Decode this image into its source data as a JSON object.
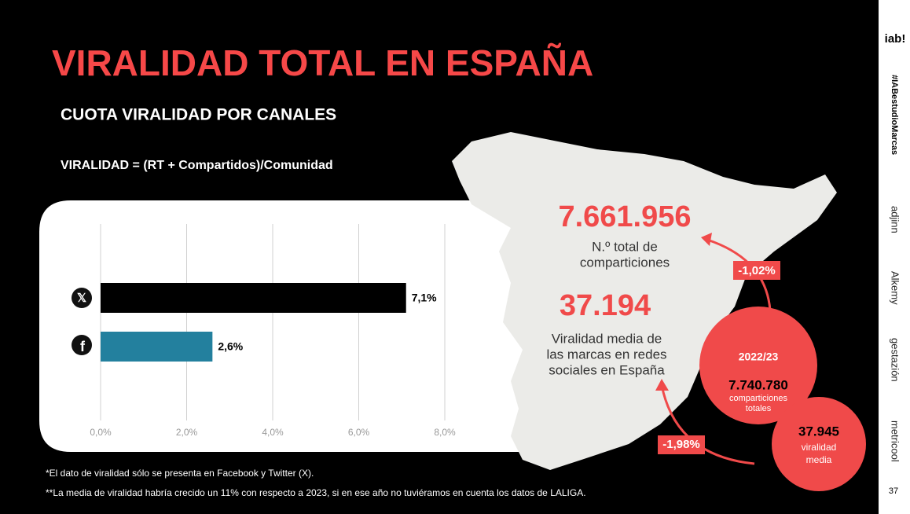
{
  "title": "VIRALIDAD TOTAL EN ESPAÑA",
  "subtitle": "CUOTA VIRALIDAD POR CANALES",
  "formula": "VIRALIDAD = (RT + Compartidos)/Comunidad",
  "chart_data": {
    "type": "bar",
    "orientation": "horizontal",
    "categories": [
      null,
      null
    ],
    "values": [
      7.1,
      2.6
    ],
    "value_labels": [
      "7,1%",
      "2,6%"
    ],
    "colors": [
      "#000000",
      "#23809e"
    ],
    "xlim": [
      0,
      8
    ],
    "xticks": [
      {
        "value": 0,
        "label": "0,0%"
      },
      {
        "value": 2,
        "label": "2,0%"
      },
      {
        "value": 4,
        "label": "4,0%"
      },
      {
        "value": 6,
        "label": "6,0%"
      },
      {
        "value": 8,
        "label": "8,0%"
      }
    ],
    "grid": true
  },
  "stats": [
    {
      "value": "7.661.956",
      "lines": [
        "N.º total de",
        "comparticiones"
      ]
    },
    {
      "value": "37.194",
      "lines": [
        "Viralidad media de",
        "las marcas en redes",
        "sociales en España"
      ]
    }
  ],
  "previous": {
    "period": "2022/23",
    "shares": "7.740.780",
    "shares_lines": [
      "comparticiones",
      "totales"
    ],
    "virality": "37.945",
    "virality_lines": [
      "viralidad",
      "media"
    ]
  },
  "changes": [
    "-1,02%",
    "-1,98%"
  ],
  "footnotes": [
    "*El dato de viralidad sólo se presenta en Facebook y Twitter (X).",
    "**La media de viralidad habría crecido un 11% con respecto a 2023, si en ese año no tuviéramos en cuenta los datos de LALIGA."
  ],
  "sidebar": {
    "logo": "iab!",
    "hashtag": "#IABestudioMarcas",
    "partners": [
      "adjinn",
      "Alkemy",
      "gestazión",
      "metricool"
    ],
    "page": "37"
  }
}
